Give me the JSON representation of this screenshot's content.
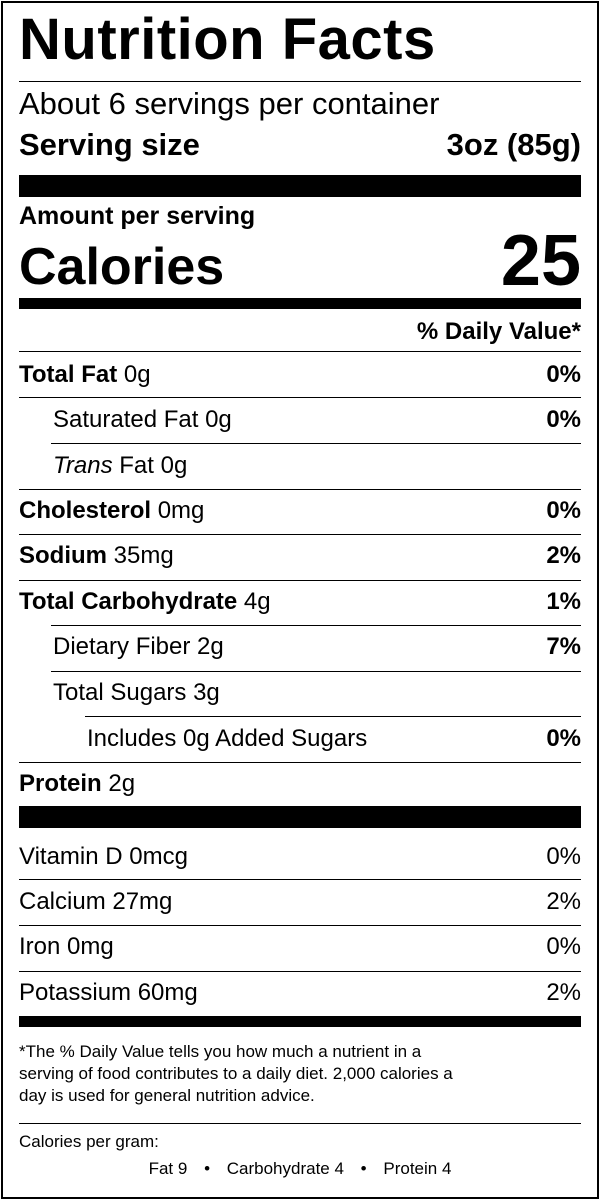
{
  "title": "Nutrition Facts",
  "servings_per_container": "About 6 servings per container",
  "serving_size": {
    "label": "Serving size",
    "value": "3oz (85g)"
  },
  "amount_per_serving": "Amount per serving",
  "calories": {
    "label": "Calories",
    "value": "25"
  },
  "daily_value_header": "% Daily Value*",
  "nutrients": {
    "total_fat": {
      "label": "Total Fat",
      "amount": "0g",
      "dv": "0%"
    },
    "saturated_fat": {
      "label": "Saturated Fat 0g",
      "dv": "0%"
    },
    "trans_fat": {
      "label_italic": "Trans",
      "label_rest": "Fat 0g"
    },
    "cholesterol": {
      "label": "Cholesterol",
      "amount": "0mg",
      "dv": "0%"
    },
    "sodium": {
      "label": "Sodium",
      "amount": "35mg",
      "dv": "2%"
    },
    "total_carbohydrate": {
      "label": "Total Carbohydrate",
      "amount": "4g",
      "dv": "1%"
    },
    "dietary_fiber": {
      "label": "Dietary Fiber 2g",
      "dv": "7%"
    },
    "total_sugars": {
      "label": "Total Sugars 3g"
    },
    "added_sugars": {
      "label": "Includes 0g Added Sugars",
      "dv": "0%"
    },
    "protein": {
      "label": "Protein",
      "amount": "2g"
    }
  },
  "vitamins_minerals": [
    {
      "label": "Vitamin D 0mcg",
      "dv": "0%"
    },
    {
      "label": "Calcium 27mg",
      "dv": "2%"
    },
    {
      "label": "Iron 0mg",
      "dv": "0%"
    },
    {
      "label": "Potassium 60mg",
      "dv": "2%"
    }
  ],
  "footnote": {
    "line1": "*The % Daily Value tells you how much a nutrient in a",
    "line2": "serving of food contributes to a daily diet. 2,000 calories a",
    "line3": "day is used for general nutrition advice."
  },
  "calories_per_gram": {
    "label": "Calories per gram:",
    "fat": "Fat 9",
    "carbohydrate": "Carbohydrate 4",
    "protein": "Protein 4",
    "separator": "•"
  }
}
